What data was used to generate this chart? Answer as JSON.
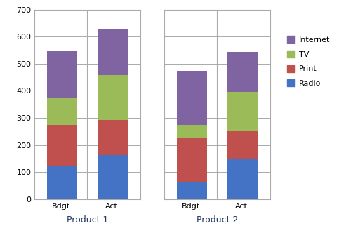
{
  "groups": [
    "Product 1",
    "Product 2"
  ],
  "subgroups": [
    "Bdgt.",
    "Act."
  ],
  "series": [
    "Radio",
    "Print",
    "TV",
    "Internet"
  ],
  "colors": [
    "#4472C4",
    "#C0504D",
    "#9BBB59",
    "#8064A2"
  ],
  "values": {
    "Product 1": {
      "Bdgt.": [
        125,
        150,
        100,
        175
      ],
      "Act.": [
        163,
        130,
        165,
        172
      ]
    },
    "Product 2": {
      "Bdgt.": [
        65,
        160,
        50,
        200
      ],
      "Act.": [
        150,
        100,
        145,
        150
      ]
    }
  },
  "ylim": [
    0,
    700
  ],
  "yticks": [
    0,
    100,
    200,
    300,
    400,
    500,
    600,
    700
  ],
  "bg_color": "#FFFFFF",
  "plot_bg_color": "#FFFFFF",
  "grid_color": "#AAAAAA",
  "bar_width": 0.6,
  "legend_labels": [
    "Internet",
    "TV",
    "Print",
    "Radio"
  ],
  "outer_border_color": "#AAAAAA"
}
